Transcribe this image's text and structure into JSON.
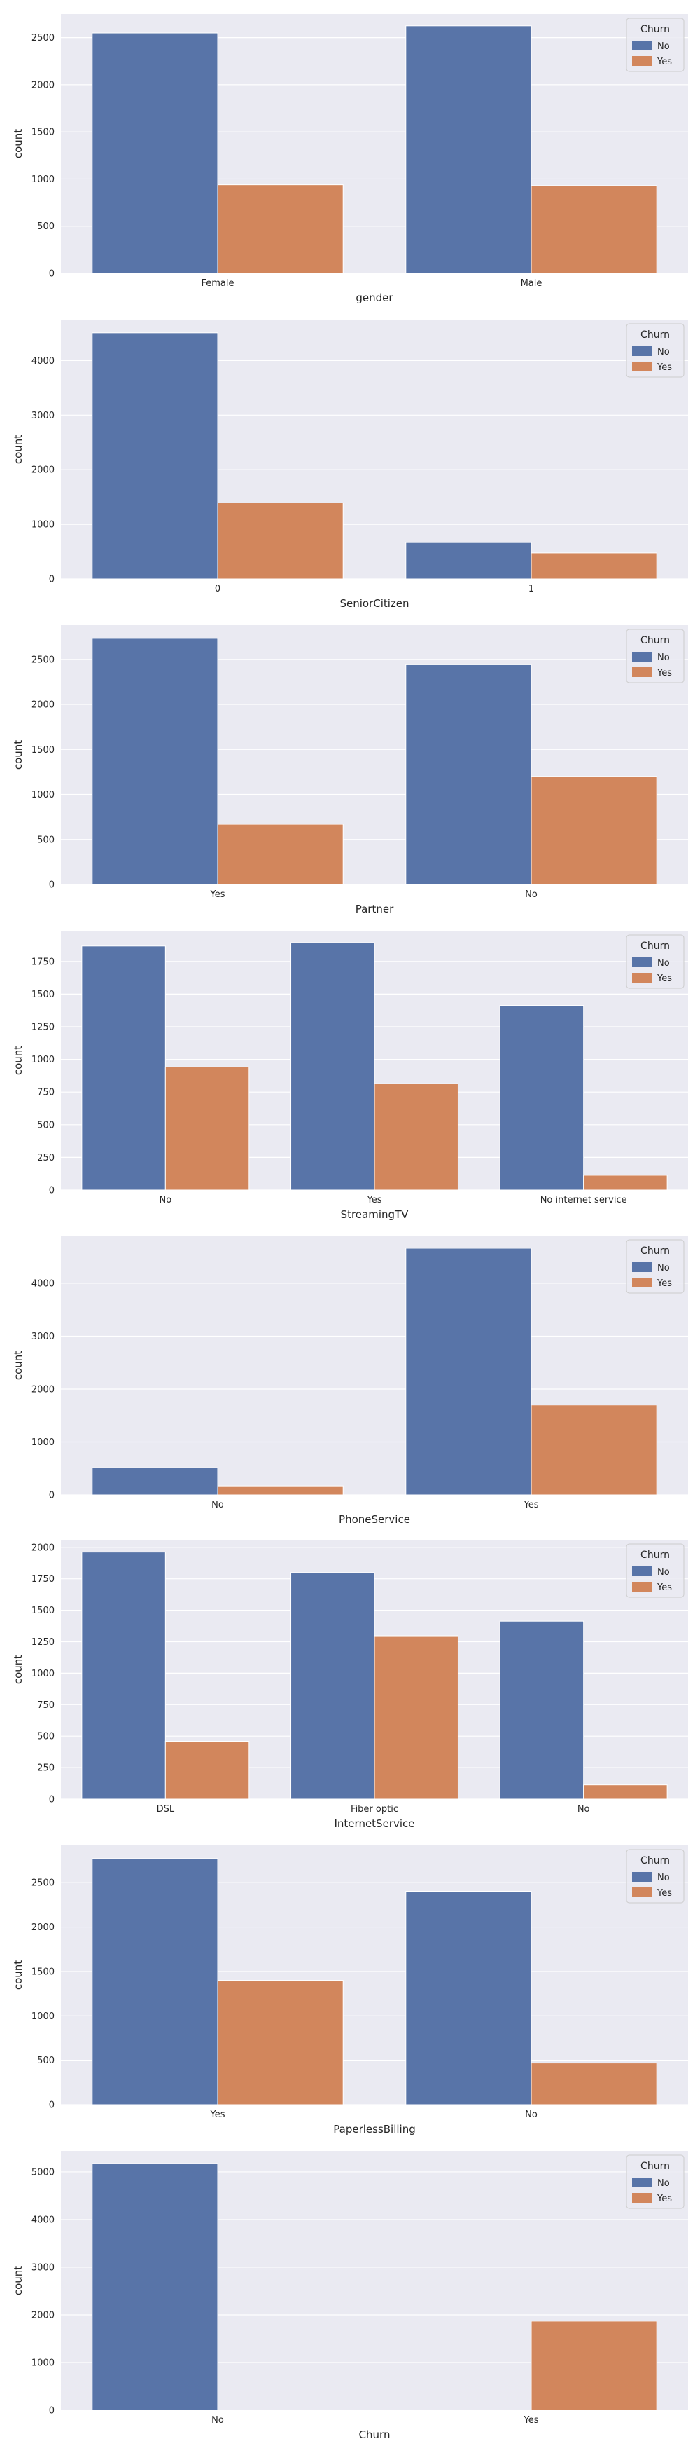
{
  "colors": {
    "No": "#5874a8",
    "Yes": "#d2865c",
    "background": "#eaeaf2",
    "grid": "#ffffff"
  },
  "chart_data": [
    {
      "type": "bar",
      "xlabel": "gender",
      "ylabel": "count",
      "categories": [
        "Female",
        "Male"
      ],
      "series": [
        {
          "name": "No",
          "values": [
            2549,
            2625
          ]
        },
        {
          "name": "Yes",
          "values": [
            939,
            930
          ]
        }
      ],
      "yticks": [
        "0",
        "500",
        "1000",
        "1500",
        "2000",
        "2500"
      ],
      "ylim": [
        0,
        2750
      ],
      "legend_title": "Churn",
      "legend_position": "top-right",
      "grid": true
    },
    {
      "type": "bar",
      "xlabel": "SeniorCitizen",
      "ylabel": "count",
      "categories": [
        "0",
        "1"
      ],
      "series": [
        {
          "name": "No",
          "values": [
            4508,
            666
          ]
        },
        {
          "name": "Yes",
          "values": [
            1393,
            476
          ]
        }
      ],
      "yticks": [
        "0",
        "1000",
        "2000",
        "3000",
        "4000"
      ],
      "ylim": [
        0,
        4750
      ],
      "legend_title": "Churn",
      "legend_position": "top-right",
      "grid": true
    },
    {
      "type": "bar",
      "xlabel": "Partner",
      "ylabel": "count",
      "categories": [
        "Yes",
        "No"
      ],
      "series": [
        {
          "name": "No",
          "values": [
            2733,
            2441
          ]
        },
        {
          "name": "Yes",
          "values": [
            669,
            1200
          ]
        }
      ],
      "yticks": [
        "0",
        "500",
        "1000",
        "1500",
        "2000",
        "2500"
      ],
      "ylim": [
        0,
        2880
      ],
      "legend_title": "Churn",
      "legend_position": "top-right",
      "grid": true
    },
    {
      "type": "bar",
      "xlabel": "StreamingTV",
      "ylabel": "count",
      "categories": [
        "No",
        "Yes",
        "No internet service"
      ],
      "series": [
        {
          "name": "No",
          "values": [
            1868,
            1893,
            1413
          ]
        },
        {
          "name": "Yes",
          "values": [
            942,
            814,
            113
          ]
        }
      ],
      "yticks": [
        "0",
        "250",
        "500",
        "750",
        "1000",
        "1250",
        "1500",
        "1750"
      ],
      "ylim": [
        0,
        1985
      ],
      "legend_title": "Churn",
      "legend_position": "top-right",
      "grid": true
    },
    {
      "type": "bar",
      "xlabel": "PhoneService",
      "ylabel": "count",
      "categories": [
        "No",
        "Yes"
      ],
      "series": [
        {
          "name": "No",
          "values": [
            512,
            4662
          ]
        },
        {
          "name": "Yes",
          "values": [
            170,
            1699
          ]
        }
      ],
      "yticks": [
        "0",
        "1000",
        "2000",
        "3000",
        "4000"
      ],
      "ylim": [
        0,
        4900
      ],
      "legend_title": "Churn",
      "legend_position": "top-right",
      "grid": true
    },
    {
      "type": "bar",
      "xlabel": "InternetService",
      "ylabel": "count",
      "categories": [
        "DSL",
        "Fiber optic",
        "No"
      ],
      "series": [
        {
          "name": "No",
          "values": [
            1962,
            1799,
            1413
          ]
        },
        {
          "name": "Yes",
          "values": [
            459,
            1297,
            113
          ]
        }
      ],
      "yticks": [
        "0",
        "250",
        "500",
        "750",
        "1000",
        "1250",
        "1500",
        "1750",
        "2000"
      ],
      "ylim": [
        0,
        2060
      ],
      "legend_title": "Churn",
      "legend_position": "top-right",
      "grid": true
    },
    {
      "type": "bar",
      "xlabel": "PaperlessBilling",
      "ylabel": "count",
      "categories": [
        "Yes",
        "No"
      ],
      "series": [
        {
          "name": "No",
          "values": [
            2771,
            2403
          ]
        },
        {
          "name": "Yes",
          "values": [
            1400,
            469
          ]
        }
      ],
      "yticks": [
        "0",
        "500",
        "1000",
        "1500",
        "2000",
        "2500"
      ],
      "ylim": [
        0,
        2920
      ],
      "legend_title": "Churn",
      "legend_position": "top-right",
      "grid": true
    },
    {
      "type": "bar",
      "xlabel": "Churn",
      "ylabel": "count",
      "categories": [
        "No",
        "Yes"
      ],
      "series": [
        {
          "name": "No",
          "values": [
            5174,
            0
          ]
        },
        {
          "name": "Yes",
          "values": [
            0,
            1869
          ]
        }
      ],
      "yticks": [
        "0",
        "1000",
        "2000",
        "3000",
        "4000",
        "5000"
      ],
      "ylim": [
        0,
        5440
      ],
      "legend_title": "Churn",
      "legend_position": "top-right",
      "grid": true
    }
  ]
}
